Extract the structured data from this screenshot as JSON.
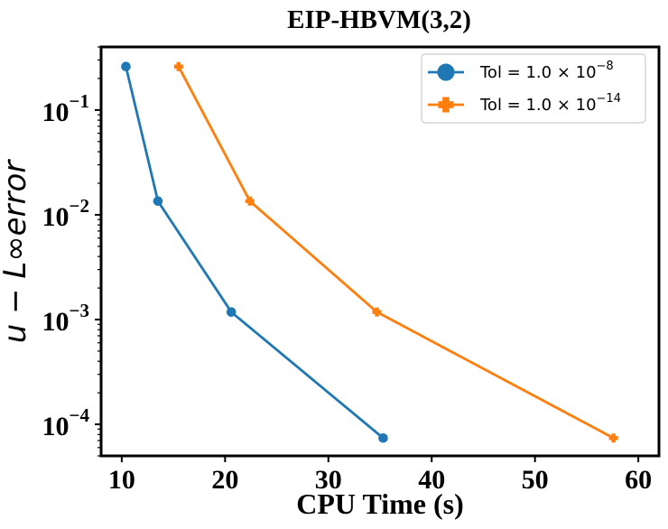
{
  "chart_data": {
    "type": "line",
    "title": "EIP-HBVM(3,2)",
    "xlabel": "CPU Time (s)",
    "ylabel": "u − L∞error",
    "yscale": "log",
    "xlim": [
      8,
      62
    ],
    "ylim": [
      5e-05,
      0.4
    ],
    "xticks": [
      10,
      20,
      30,
      40,
      50,
      60
    ],
    "yticks": [
      {
        "value": 0.1,
        "base": "10",
        "exp": "−1"
      },
      {
        "value": 0.01,
        "base": "10",
        "exp": "−2"
      },
      {
        "value": 0.001,
        "base": "10",
        "exp": "−3"
      },
      {
        "value": 0.0001,
        "base": "10",
        "exp": "−4"
      }
    ],
    "legend_position": "top-right",
    "series": [
      {
        "name": "Tol = 1.0 × 10^-8",
        "legend_main": "Tol = 1.0 × 10",
        "legend_exp": "−8",
        "color": "#1f77b4",
        "marker": "circle",
        "x": [
          10.4,
          13.5,
          20.6,
          35.3
        ],
        "y": [
          0.26,
          0.0135,
          0.00118,
          7.4e-05
        ]
      },
      {
        "name": "Tol = 1.0 × 10^-14",
        "legend_main": "Tol = 1.0 × 10",
        "legend_exp": "−14",
        "color": "#ff7f0e",
        "marker": "plus",
        "x": [
          15.5,
          22.4,
          34.7,
          57.6
        ],
        "y": [
          0.26,
          0.0135,
          0.00118,
          7.4e-05
        ]
      }
    ]
  }
}
